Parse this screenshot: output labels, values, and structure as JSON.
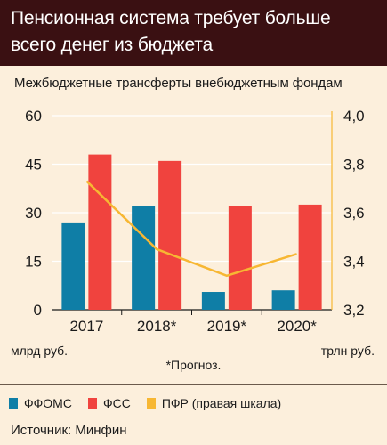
{
  "title": "Пенсионная система требует больше всего денег из бюджета",
  "subtitle": "Межбюджетные трансферты внебюджетным фондам",
  "colors": {
    "header_bg": "#3a1012",
    "background": "#fcefdc",
    "ffoms": "#0f7ea6",
    "fss": "#f0433e",
    "pfr": "#f7b733",
    "grid": "#ffffff"
  },
  "chart_data": {
    "type": "bar",
    "categories": [
      "2017",
      "2018*",
      "2019*",
      "2020*"
    ],
    "series": [
      {
        "name": "ФФОМС",
        "type": "bar",
        "axis": "left",
        "values": [
          27,
          32,
          5.5,
          6
        ]
      },
      {
        "name": "ФСС",
        "type": "bar",
        "axis": "left",
        "values": [
          48,
          46,
          32,
          32.5
        ]
      },
      {
        "name": "ПФР (правая шкала)",
        "type": "line",
        "axis": "right",
        "values": [
          3.73,
          3.45,
          3.34,
          3.43
        ]
      }
    ],
    "left_axis": {
      "ylim": [
        0,
        60
      ],
      "ticks": [
        "0",
        "15",
        "30",
        "45",
        "60"
      ],
      "unit": "млрд руб."
    },
    "right_axis": {
      "ylim": [
        3.2,
        4.0
      ],
      "ticks": [
        "3,2",
        "3,4",
        "3,6",
        "3,8",
        "4,0"
      ],
      "unit": "трлн руб."
    },
    "grid": true,
    "legend_position": "bottom"
  },
  "footnote": "*Прогноз.",
  "legend": [
    {
      "label": "ФФОМС",
      "color": "#0f7ea6"
    },
    {
      "label": "ФСС",
      "color": "#f0433e"
    },
    {
      "label": "ПФР (правая шкала)",
      "color": "#f7b733"
    }
  ],
  "source": "Источник: Минфин"
}
